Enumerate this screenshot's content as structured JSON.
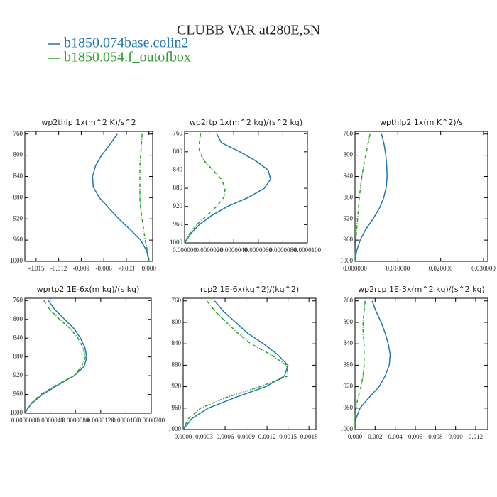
{
  "title": "CLUBB VAR at280E,5N",
  "legend": [
    {
      "name": "b1850.074base.colin2",
      "color": "#1f77b4"
    },
    {
      "name": "b1850.054.f_outofbox",
      "color": "#2ca02c"
    }
  ],
  "chart_data": [
    {
      "type": "line",
      "title": "wp2thlp  1x(m^2 K)/s^2",
      "y": [
        760,
        780,
        800,
        820,
        840,
        860,
        880,
        900,
        920,
        940,
        960,
        980,
        1000
      ],
      "series": [
        {
          "color": "#1f77b4",
          "values": [
            -0.0042,
            -0.0052,
            -0.0063,
            -0.0071,
            -0.0075,
            -0.0074,
            -0.0066,
            -0.0053,
            -0.004,
            -0.0025,
            -0.0011,
            -0.0003,
            0
          ]
        },
        {
          "color": "#2ca02c",
          "dashed": true,
          "values": [
            -0.0009,
            -0.001,
            -0.0011,
            -0.0012,
            -0.0012,
            -0.0012,
            -0.0012,
            -0.0011,
            -0.0009,
            -0.0007,
            -0.0005,
            -0.0002,
            0
          ]
        }
      ],
      "xlim": [
        -0.0165,
        0.0005
      ],
      "xticks": [
        -0.015,
        -0.012,
        -0.009,
        -0.006,
        -0.003,
        {
          "value": 0,
          "label": "0.000"
        }
      ],
      "ylim": [
        1000,
        755
      ],
      "yticks": [
        760,
        800,
        840,
        880,
        920,
        960,
        1000
      ]
    },
    {
      "type": "line",
      "title": "wp2rtp  1x(m^2 kg)/(s^2 kg)",
      "y": [
        760,
        780,
        800,
        820,
        840,
        860,
        880,
        900,
        920,
        940,
        960,
        980,
        1000
      ],
      "series": [
        {
          "color": "#1f77b4",
          "values": [
            2.6e-06,
            3e-06,
            4.5e-06,
            5.8e-06,
            6.8e-06,
            7e-06,
            6.5e-06,
            5.2e-06,
            3.5e-06,
            2.2e-06,
            1.2e-06,
            5e-07,
            0
          ]
        },
        {
          "color": "#2ca02c",
          "dashed": true,
          "values": [
            1.3e-06,
            1.2e-06,
            1.2e-06,
            1.6e-06,
            2.3e-06,
            3e-06,
            3.3e-06,
            3.2e-06,
            2.6e-06,
            1.8e-06,
            1e-06,
            4e-07,
            0
          ]
        }
      ],
      "xlim": [
        0,
        1e-05
      ],
      "xticks": [
        {
          "value": 0,
          "label": "0.000000"
        },
        {
          "value": 2e-06,
          "label": "0.0000020"
        },
        {
          "value": 4e-06,
          "label": "0.0000040"
        },
        {
          "value": 6e-06,
          "label": "0.0000060"
        },
        {
          "value": 8e-06,
          "label": "0.0000080"
        },
        {
          "value": 1e-05,
          "label": "0.0000100"
        }
      ],
      "ylim": [
        1000,
        755
      ],
      "yticks": [
        760,
        800,
        840,
        880,
        920,
        960,
        1000
      ]
    },
    {
      "type": "line",
      "title": "wpthlp2  1x(m K^2)/s",
      "y": [
        760,
        780,
        800,
        820,
        840,
        860,
        880,
        900,
        920,
        940,
        960,
        980,
        1000
      ],
      "series": [
        {
          "color": "#1f77b4",
          "values": [
            0.0062,
            0.0068,
            0.0072,
            0.0074,
            0.0075,
            0.0073,
            0.0067,
            0.0057,
            0.0042,
            0.0025,
            0.0012,
            0.0004,
            0
          ]
        },
        {
          "color": "#2ca02c",
          "dashed": true,
          "values": [
            0.0035,
            0.003,
            0.0025,
            0.002,
            0.0016,
            0.0013,
            0.001,
            0.0008,
            0.0006,
            0.0004,
            0.0002,
            0.0001,
            0
          ]
        }
      ],
      "xlim": [
        0,
        0.031
      ],
      "xticks": [
        {
          "value": 0,
          "label": "0.000000"
        },
        {
          "value": 0.01,
          "label": "0.010000"
        },
        {
          "value": 0.02,
          "label": "0.020000"
        },
        {
          "value": 0.03,
          "label": "0.030000"
        }
      ],
      "ylim": [
        1000,
        755
      ],
      "yticks": [
        760,
        800,
        840,
        880,
        920,
        960,
        1000
      ]
    },
    {
      "type": "line",
      "title": "wprtp2  1E-6x(m kg)/(s kg)",
      "y": [
        760,
        780,
        800,
        820,
        840,
        860,
        880,
        900,
        920,
        940,
        960,
        980,
        1000
      ],
      "series": [
        {
          "color": "#1f77b4",
          "values": [
            3.7e-06,
            4.8e-06,
            6.3e-06,
            7.8e-06,
            8.8e-06,
            9.5e-06,
            9.8e-06,
            9.4e-06,
            7.8e-06,
            5.2e-06,
            2.8e-06,
            1e-06,
            0
          ]
        },
        {
          "color": "#2ca02c",
          "dashed": true,
          "values": [
            3e-06,
            4e-06,
            5.5e-06,
            7.2e-06,
            8.4e-06,
            9.2e-06,
            9.6e-06,
            9e-06,
            7.8e-06,
            5e-06,
            2.5e-06,
            9e-07,
            0
          ]
        }
      ],
      "xlim": [
        0,
        2e-05
      ],
      "xticks": [
        {
          "value": 0,
          "label": "0.0000000"
        },
        {
          "value": 4e-06,
          "label": "0.0000040"
        },
        {
          "value": 8e-06,
          "label": "0.0000080"
        },
        {
          "value": 1.2e-05,
          "label": "0.0000120"
        },
        {
          "value": 1.6e-05,
          "label": "0.0000160"
        },
        {
          "value": 2e-05,
          "label": "0.0000200"
        }
      ],
      "ylim": [
        1000,
        755
      ],
      "yticks": [
        760,
        800,
        840,
        880,
        920,
        960,
        1000
      ]
    },
    {
      "type": "line",
      "title": "rcp2  1E-6x(kg^2)/(kg^2)",
      "y": [
        760,
        780,
        800,
        820,
        840,
        860,
        880,
        900,
        920,
        940,
        960,
        980,
        1000
      ],
      "series": [
        {
          "color": "#1f77b4",
          "values": [
            0.00045,
            0.00058,
            0.00075,
            0.00092,
            0.00115,
            0.00135,
            0.0015,
            0.00145,
            0.00118,
            0.00075,
            0.00036,
            0.00012,
            0
          ]
        },
        {
          "color": "#2ca02c",
          "dashed": true,
          "values": [
            0.00034,
            0.00046,
            0.00062,
            0.00078,
            0.00097,
            0.00125,
            0.00148,
            0.0015,
            0.0011,
            0.00062,
            0.00025,
            7e-05,
            0
          ]
        }
      ],
      "xlim": [
        0,
        0.0019
      ],
      "xticks": [
        {
          "value": 0,
          "label": "0.0000"
        },
        0.0003,
        0.0006,
        0.0009,
        0.0012,
        0.0015,
        0.0018
      ],
      "ylim": [
        1000,
        755
      ],
      "yticks": [
        760,
        800,
        840,
        880,
        920,
        960,
        1000
      ]
    },
    {
      "type": "line",
      "title": "wp2rcp  1E-3x(m^2 kg)/(s^2 kg)",
      "y": [
        760,
        780,
        800,
        820,
        840,
        860,
        880,
        900,
        920,
        940,
        960,
        980,
        1000
      ],
      "series": [
        {
          "color": "#1f77b4",
          "values": [
            0.0017,
            0.0021,
            0.0026,
            0.003,
            0.0033,
            0.0035,
            0.0034,
            0.003,
            0.0024,
            0.0014,
            0.0005,
            0.0001,
            0
          ]
        },
        {
          "color": "#2ca02c",
          "dashed": true,
          "values": [
            0.001,
            0.0009,
            0.0008,
            0.0008,
            0.0009,
            0.0009,
            0.0009,
            0.0008,
            0.0006,
            0.0003,
            0.0001,
            0,
            0
          ]
        }
      ],
      "xlim": [
        0,
        0.0132
      ],
      "xticks": [
        {
          "value": 0,
          "label": "0.000"
        },
        0.002,
        0.004,
        0.006,
        0.008,
        {
          "value": 0.01,
          "label": "0.010"
        },
        0.012
      ],
      "ylim": [
        1000,
        755
      ],
      "yticks": [
        760,
        800,
        840,
        880,
        920,
        960,
        1000
      ]
    }
  ]
}
